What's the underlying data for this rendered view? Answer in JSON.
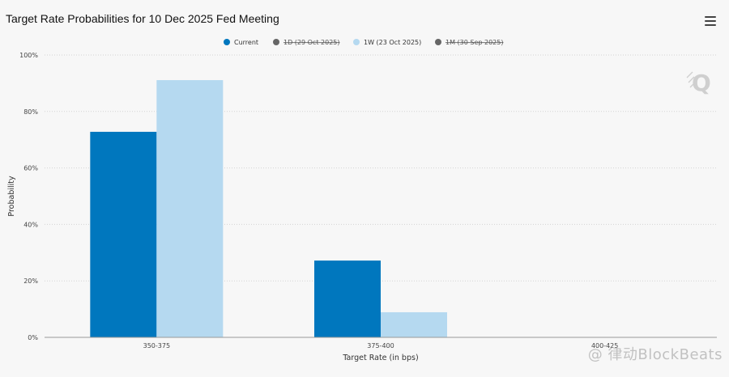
{
  "header": {
    "title": "Target Rate Probabilities for 10 Dec 2025 Fed Meeting"
  },
  "icons": {
    "menu": "hamburger-icon",
    "logo": "q-logo-icon"
  },
  "watermark": "@ 律动BlockBeats",
  "colors": {
    "current": "#0077be",
    "one_week": "#b5d9f0",
    "hidden_dot": "#666666",
    "grid": "#d3d3d3"
  },
  "chart_data": {
    "type": "bar",
    "title": "Target Rate Probabilities for 10 Dec 2025 Fed Meeting",
    "xlabel": "Target Rate (in bps)",
    "ylabel": "Probability",
    "ylim": [
      0,
      100
    ],
    "yticks": [
      "0%",
      "20%",
      "40%",
      "60%",
      "80%",
      "100%"
    ],
    "categories": [
      "350-375",
      "375-400",
      "400-425"
    ],
    "legend_position": "top-center",
    "grid": true,
    "legend": [
      {
        "name": "Current",
        "visible": true
      },
      {
        "name": "1D (29 Oct 2025)",
        "visible": false
      },
      {
        "name": "1W (23 Oct 2025)",
        "visible": true
      },
      {
        "name": "1M (30 Sep 2025)",
        "visible": false
      }
    ],
    "series": [
      {
        "name": "Current",
        "values": [
          72.8,
          27.2,
          0
        ]
      },
      {
        "name": "1W (23 Oct 2025)",
        "values": [
          91.1,
          8.9,
          0
        ]
      }
    ]
  }
}
